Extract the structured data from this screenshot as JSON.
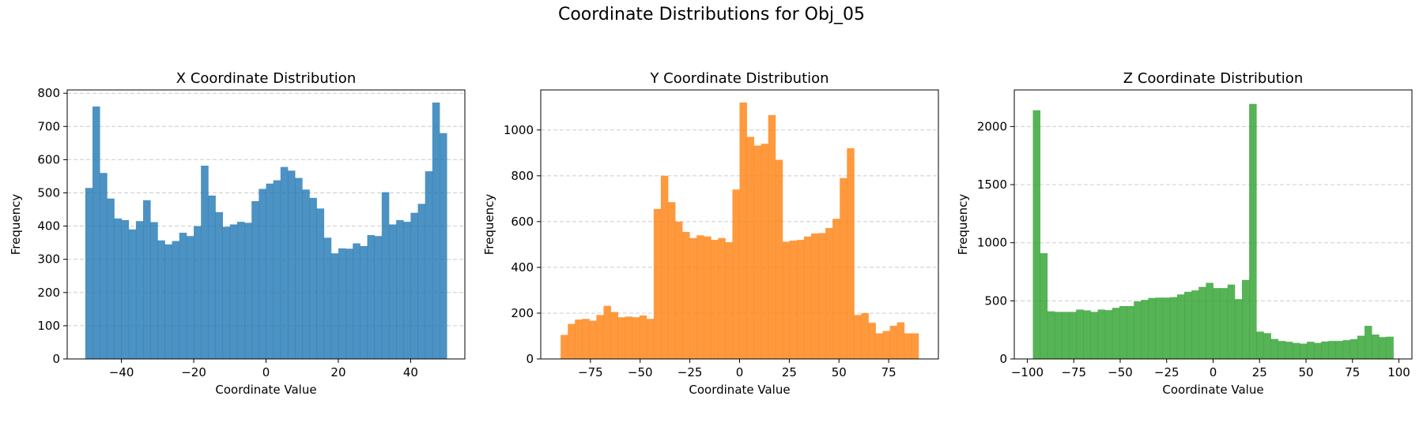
{
  "suptitle": "Coordinate Distributions for Obj_05",
  "chart_data": [
    {
      "type": "bar",
      "title": "X Coordinate Distribution",
      "xlabel": "Coordinate Value",
      "ylabel": "Frequency",
      "color": "#1f77b4",
      "grid": "y-dashed",
      "xlim": [
        -55,
        55
      ],
      "ylim": [
        0,
        810
      ],
      "xticks": [
        -40,
        -20,
        0,
        20,
        40
      ],
      "yticks": [
        0,
        100,
        200,
        300,
        400,
        500,
        600,
        700,
        800
      ],
      "bin_start": -50,
      "bin_end": 50,
      "values": [
        515,
        760,
        560,
        483,
        423,
        418,
        390,
        415,
        478,
        412,
        357,
        345,
        355,
        380,
        370,
        400,
        582,
        492,
        442,
        398,
        405,
        413,
        410,
        475,
        512,
        528,
        538,
        578,
        567,
        545,
        510,
        485,
        453,
        365,
        318,
        333,
        332,
        348,
        340,
        373,
        370,
        502,
        405,
        418,
        413,
        440,
        467,
        565,
        772,
        680
      ]
    },
    {
      "type": "bar",
      "title": "Y Coordinate Distribution",
      "xlabel": "Coordinate Value",
      "ylabel": "Frequency",
      "color": "#ff7f0e",
      "grid": "y-dashed",
      "xlim": [
        -100,
        100
      ],
      "ylim": [
        0,
        1175
      ],
      "xticks": [
        -75,
        -50,
        -25,
        0,
        25,
        50,
        75
      ],
      "yticks": [
        0,
        200,
        400,
        600,
        800,
        1000
      ],
      "bin_start": -90,
      "bin_end": 90,
      "values": [
        105,
        153,
        172,
        175,
        167,
        192,
        232,
        205,
        182,
        185,
        182,
        190,
        175,
        655,
        800,
        685,
        600,
        555,
        528,
        540,
        535,
        520,
        528,
        510,
        740,
        1120,
        970,
        932,
        940,
        1065,
        870,
        512,
        517,
        520,
        535,
        548,
        550,
        572,
        612,
        790,
        920,
        192,
        200,
        158,
        112,
        122,
        145,
        160,
        112,
        112
      ]
    },
    {
      "type": "bar",
      "title": "Z Coordinate Distribution",
      "xlabel": "Coordinate Value",
      "ylabel": "Frequency",
      "color": "#2ca02c",
      "grid": "y-dashed",
      "xlim": [
        -107,
        107
      ],
      "ylim": [
        0,
        2315
      ],
      "xticks": [
        -100,
        -75,
        -50,
        -25,
        0,
        25,
        50,
        75,
        100
      ],
      "yticks": [
        0,
        500,
        1000,
        1500,
        2000
      ],
      "bin_start": -97,
      "bin_end": 97,
      "values": [
        2140,
        910,
        410,
        405,
        405,
        405,
        425,
        418,
        405,
        425,
        420,
        440,
        455,
        455,
        495,
        508,
        525,
        528,
        528,
        532,
        555,
        578,
        590,
        620,
        655,
        610,
        610,
        640,
        515,
        680,
        2195,
        235,
        222,
        172,
        155,
        148,
        138,
        132,
        148,
        138,
        150,
        155,
        155,
        162,
        170,
        200,
        285,
        210,
        188,
        192
      ]
    }
  ]
}
